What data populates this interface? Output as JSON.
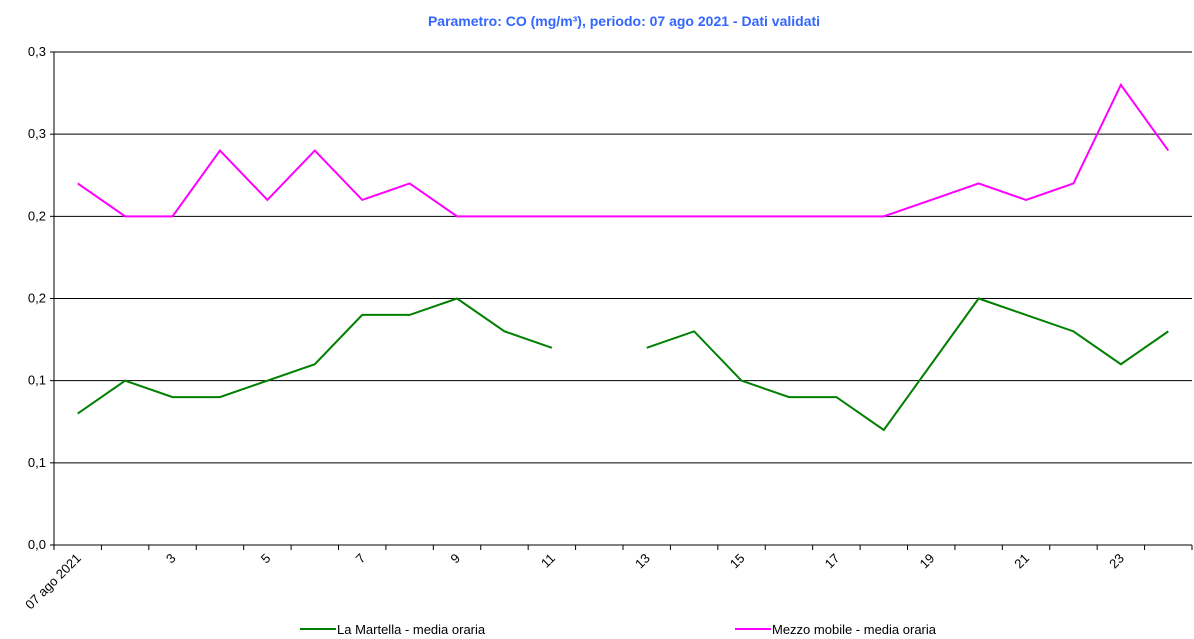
{
  "chart_data": {
    "type": "line",
    "title": "Parametro: CO (mg/m³), periodo: 07 ago 2021 - Dati validati",
    "categories": [
      "07 ago 2021",
      null,
      "3",
      null,
      "5",
      null,
      "7",
      null,
      "9",
      null,
      "11",
      null,
      "13",
      null,
      "15",
      null,
      "17",
      null,
      "19",
      null,
      "21",
      null,
      "23",
      null
    ],
    "series": [
      {
        "name": "La Martella - media oraria",
        "color": "#008000",
        "values": [
          0.08,
          0.1,
          0.09,
          0.09,
          0.1,
          0.11,
          0.14,
          0.14,
          0.15,
          0.13,
          0.12,
          null,
          0.12,
          0.13,
          0.1,
          0.09,
          0.09,
          0.07,
          0.11,
          0.15,
          0.14,
          0.13,
          0.11,
          0.13
        ]
      },
      {
        "name": "Mezzo mobile - media oraria",
        "color": "#ff00ff",
        "values": [
          0.22,
          0.2,
          0.2,
          0.24,
          0.21,
          0.24,
          0.21,
          0.22,
          0.2,
          0.2,
          0.2,
          0.2,
          0.2,
          0.2,
          0.2,
          0.2,
          0.2,
          0.2,
          0.21,
          0.22,
          0.21,
          0.22,
          0.28,
          0.24
        ]
      }
    ],
    "ylim": [
      0,
      0.3
    ],
    "yticks": [
      {
        "value": 0,
        "label": "0,0"
      },
      {
        "value": 0.05,
        "label": "0,1"
      },
      {
        "value": 0.1,
        "label": "0,1"
      },
      {
        "value": 0.15,
        "label": "0,2"
      },
      {
        "value": 0.2,
        "label": "0,2"
      },
      {
        "value": 0.25,
        "label": "0,3"
      },
      {
        "value": 0.3,
        "label": "0,3"
      }
    ],
    "grid": true
  }
}
